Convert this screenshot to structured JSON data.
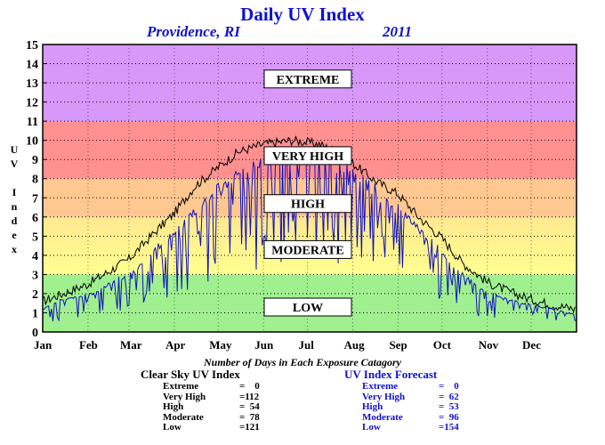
{
  "title": "Daily UV Index",
  "location": "Providence, RI",
  "year": "2011",
  "ylabel": "UV Index",
  "chart_data": {
    "type": "line",
    "title": "Daily UV Index",
    "ylabel": "UV Index",
    "ylim": [
      0,
      15
    ],
    "yticks": [
      "0",
      "1",
      "2",
      "3",
      "4",
      "5",
      "6",
      "7",
      "8",
      "9",
      "10",
      "11",
      "12",
      "13",
      "14",
      "15"
    ],
    "months": [
      "Jan",
      "Feb",
      "Mar",
      "Apr",
      "May",
      "Jun",
      "Jul",
      "Aug",
      "Sep",
      "Oct",
      "Nov",
      "Dec"
    ],
    "grid": true,
    "bands": [
      {
        "label": "LOW",
        "from": 0,
        "to": 3,
        "color": "#a0f090"
      },
      {
        "label": "MODERATE",
        "from": 3,
        "to": 6,
        "color": "#ffff90",
        "gradient_from": "#ffff90",
        "gradient_to": "#ffe890"
      },
      {
        "label": "HIGH",
        "from": 6,
        "to": 8,
        "color": "#ffc890"
      },
      {
        "label": "VERY HIGH",
        "from": 8,
        "to": 11,
        "color": "#ff9090"
      },
      {
        "label": "EXTREME",
        "from": 11,
        "to": 15,
        "color": "#d898f8"
      }
    ],
    "band_label_values": [
      {
        "label": "EXTREME",
        "y": 13.2
      },
      {
        "label": "VERY HIGH",
        "y": 9.2
      },
      {
        "label": "HIGH",
        "y": 6.7
      },
      {
        "label": "MODERATE",
        "y": 4.3
      },
      {
        "label": "LOW",
        "y": 1.3
      }
    ],
    "series": [
      {
        "name": "Clear Sky UV Index",
        "color": "#000000",
        "points": [
          [
            1,
            1.6
          ],
          [
            15,
            2.0
          ],
          [
            32,
            2.5
          ],
          [
            45,
            3.1
          ],
          [
            60,
            3.8
          ],
          [
            75,
            5.0
          ],
          [
            91,
            6.2
          ],
          [
            105,
            7.6
          ],
          [
            121,
            8.6
          ],
          [
            135,
            9.4
          ],
          [
            152,
            9.8
          ],
          [
            172,
            10.0
          ],
          [
            190,
            9.8
          ],
          [
            205,
            9.3
          ],
          [
            213,
            8.8
          ],
          [
            228,
            7.9
          ],
          [
            244,
            7.2
          ],
          [
            258,
            6.0
          ],
          [
            274,
            4.9
          ],
          [
            288,
            3.6
          ],
          [
            305,
            2.6
          ],
          [
            320,
            2.1
          ],
          [
            335,
            1.7
          ],
          [
            350,
            1.4
          ],
          [
            365,
            1.2
          ]
        ]
      },
      {
        "name": "UV Index Forecast",
        "color": "#1010c0",
        "points": [
          [
            1,
            1.2
          ],
          [
            10,
            1.6
          ],
          [
            20,
            1.8
          ],
          [
            35,
            2.0
          ],
          [
            50,
            2.7
          ],
          [
            65,
            3.2
          ],
          [
            80,
            4.5
          ],
          [
            95,
            5.5
          ],
          [
            110,
            6.8
          ],
          [
            125,
            7.8
          ],
          [
            140,
            8.5
          ],
          [
            152,
            8.9
          ],
          [
            165,
            9.2
          ],
          [
            180,
            9.3
          ],
          [
            195,
            9.0
          ],
          [
            210,
            8.6
          ],
          [
            225,
            7.8
          ],
          [
            240,
            6.8
          ],
          [
            255,
            5.6
          ],
          [
            270,
            4.5
          ],
          [
            285,
            3.2
          ],
          [
            300,
            2.3
          ],
          [
            315,
            1.8
          ],
          [
            330,
            1.5
          ],
          [
            345,
            1.3
          ],
          [
            365,
            0.9
          ]
        ]
      }
    ]
  },
  "footer": {
    "title": "Number of Days in Each Exposure Catagory",
    "clear_sky": {
      "heading": "Clear Sky UV Index",
      "rows": [
        {
          "label": "Extreme",
          "val": "=    0"
        },
        {
          "label": "Very High",
          "val": "=112"
        },
        {
          "label": "High",
          "val": "=  54"
        },
        {
          "label": "Moderate",
          "val": "=  78"
        },
        {
          "label": "Low",
          "val": "=121"
        }
      ]
    },
    "forecast": {
      "heading": "UV Index Forecast",
      "rows": [
        {
          "label": "Extreme",
          "val": "=    0"
        },
        {
          "label": "Very High",
          "val": "=  62"
        },
        {
          "label": "High",
          "val": "=  53"
        },
        {
          "label": "Moderate",
          "val": "=  96"
        },
        {
          "label": "Low",
          "val": "=154"
        }
      ]
    }
  }
}
